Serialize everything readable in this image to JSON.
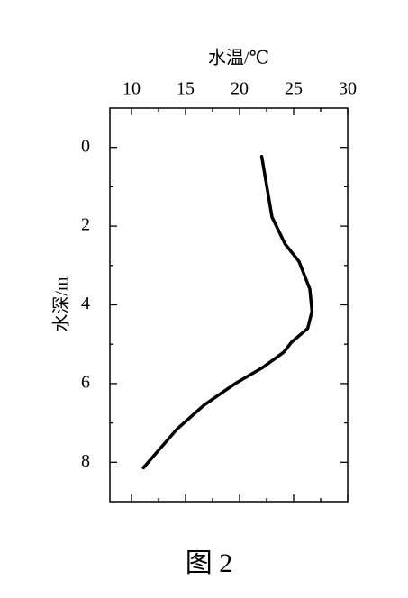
{
  "chart_data": {
    "type": "line",
    "x_label": "水温/℃",
    "y_label": "水深/m",
    "caption": "图 2",
    "series": [
      {
        "color": "#000000",
        "x": [
          22.05,
          23.0,
          24.2,
          25.5,
          26.5,
          26.7,
          26.3,
          24.8,
          24.1,
          22.1,
          19.6,
          16.7,
          14.2,
          11.1
        ],
        "values": [
          0.23,
          1.77,
          2.45,
          2.9,
          3.6,
          4.16,
          4.6,
          4.95,
          5.2,
          5.6,
          6.0,
          6.55,
          7.16,
          8.14
        ]
      }
    ],
    "xlim": [
      8,
      30
    ],
    "xticks": [
      10,
      15,
      20,
      25,
      30
    ],
    "ylim": [
      -1,
      9
    ],
    "yticks": [
      0,
      2,
      4,
      6,
      8
    ],
    "y_inverted": true,
    "x_axis_position": "top"
  }
}
